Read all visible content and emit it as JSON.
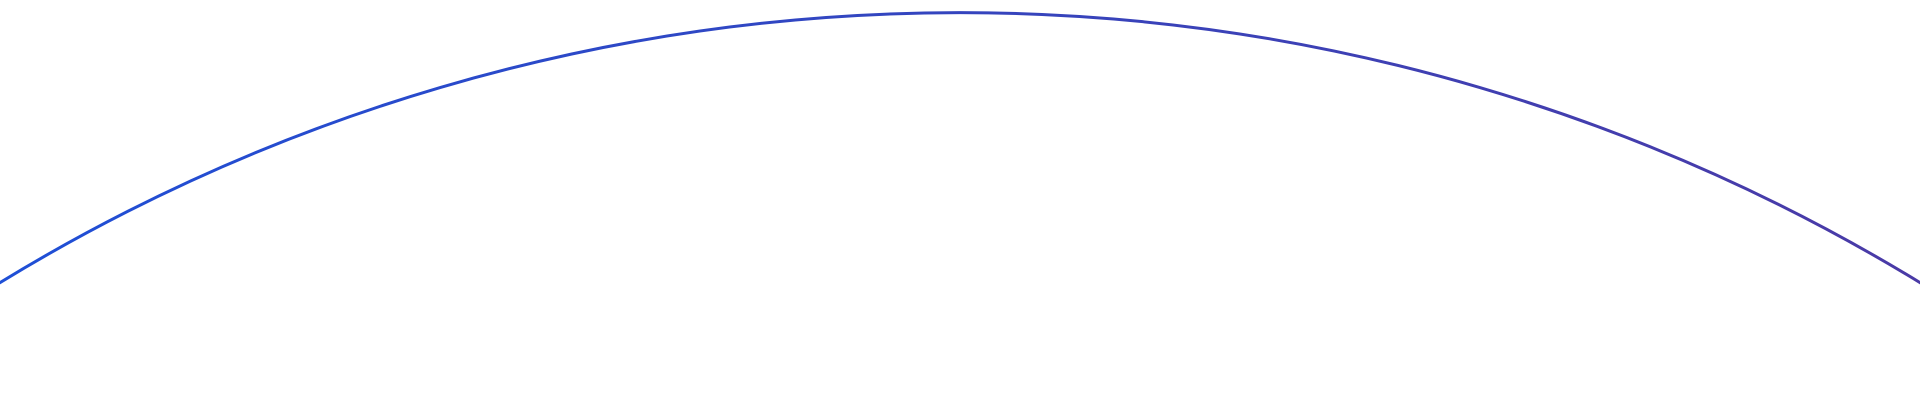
{
  "decoration": {
    "shape": "arc",
    "colors": {
      "start": "#1f4fd6",
      "end": "#4a3aa6",
      "background": "#ffffff"
    }
  }
}
